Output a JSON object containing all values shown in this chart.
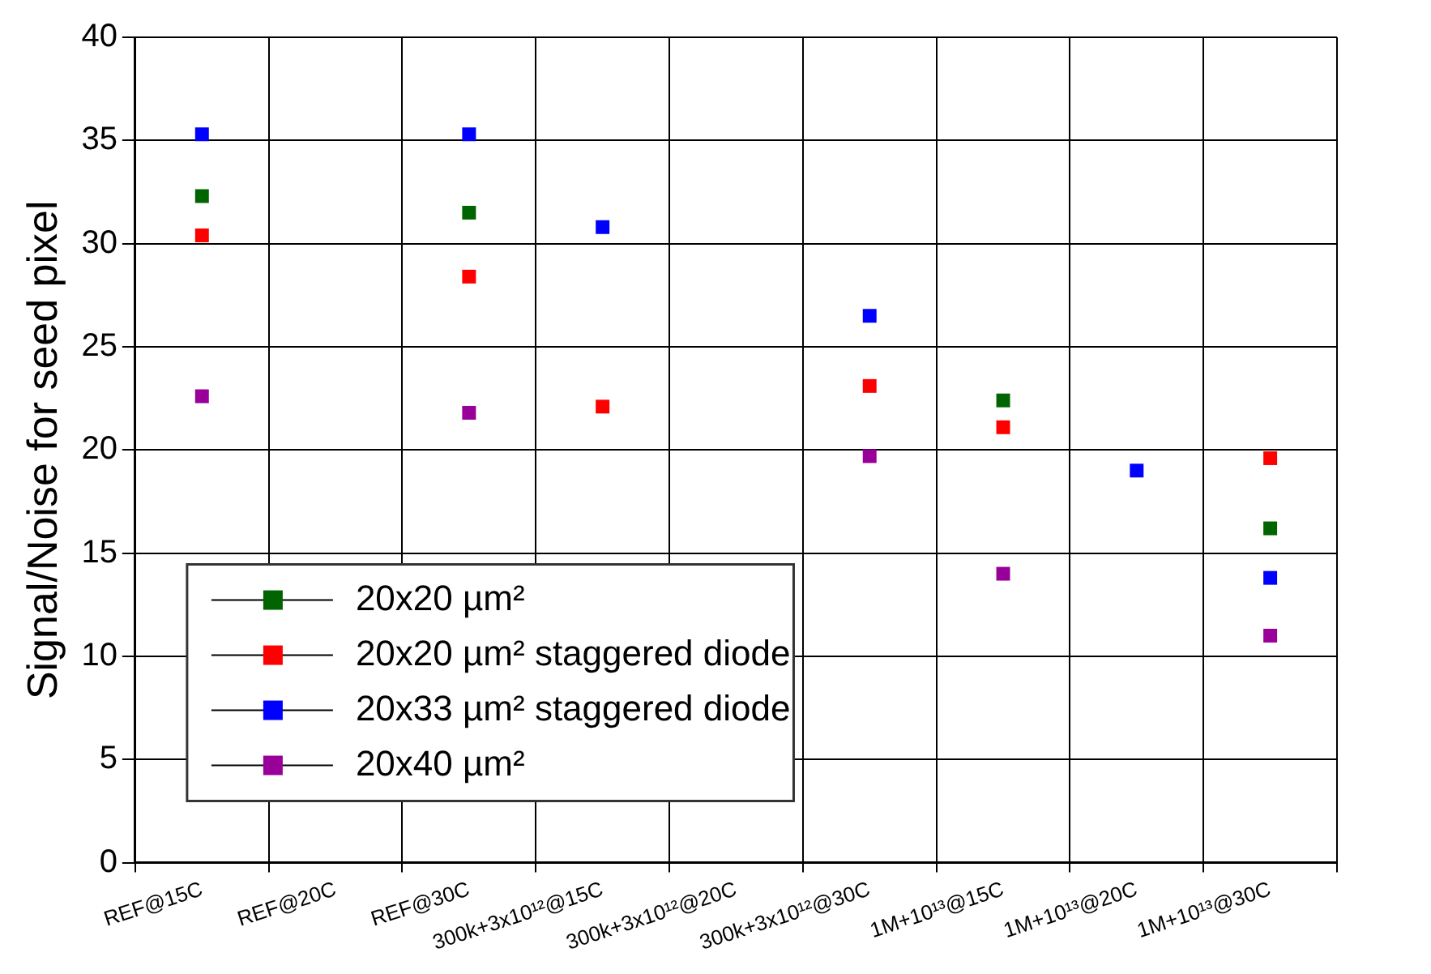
{
  "chart_data": {
    "type": "scatter",
    "ylabel": "Signal/Noise for seed pixel",
    "categories": [
      "REF@15C",
      "REF@20C",
      "REF@30C",
      "300k+3x10¹²@15C",
      "300k+3x10¹²@20C",
      "300k+3x10¹²@30C",
      "1M+10¹³@15C",
      "1M+10¹³@20C",
      "1M+10¹³@30C"
    ],
    "series": [
      {
        "name": "20x20 µm²",
        "color": "#006400",
        "values": [
          32.3,
          null,
          31.5,
          null,
          null,
          null,
          22.4,
          null,
          16.2
        ]
      },
      {
        "name": "20x20 µm² staggered diode",
        "color": "#ff0000",
        "values": [
          30.4,
          null,
          28.4,
          22.1,
          null,
          23.1,
          21.1,
          null,
          19.6
        ]
      },
      {
        "name": "20x33 µm² staggered diode",
        "color": "#0000ff",
        "values": [
          35.3,
          null,
          35.3,
          30.8,
          null,
          26.5,
          null,
          19.0,
          13.8
        ]
      },
      {
        "name": "20x40 µm²",
        "color": "#990099",
        "values": [
          22.6,
          null,
          21.8,
          null,
          null,
          19.7,
          14.0,
          null,
          11.0
        ]
      }
    ],
    "ylim": [
      0,
      40
    ],
    "yticks": [
      0,
      5,
      10,
      15,
      20,
      25,
      30,
      35,
      40
    ],
    "grid": true,
    "legend": "bottom left",
    "marker": "square"
  }
}
